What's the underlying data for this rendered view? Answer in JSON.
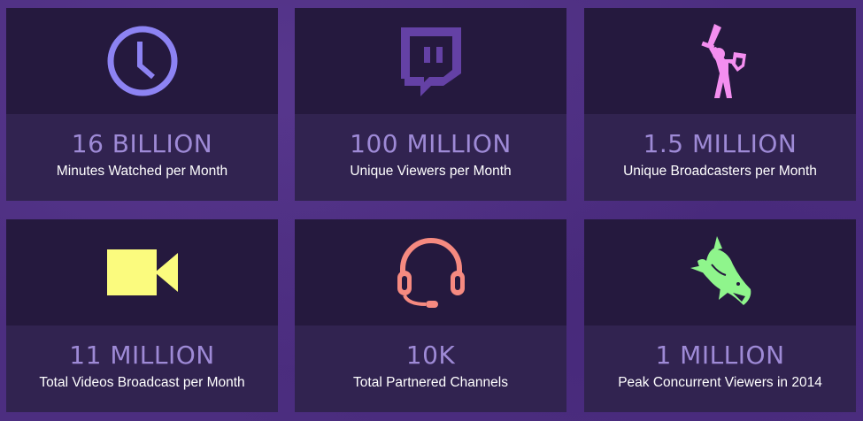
{
  "stats": [
    {
      "value": "16 BILLION",
      "label": "Minutes Watched per Month",
      "icon": "clock-icon",
      "color": "#8d83f3"
    },
    {
      "value": "100 MILLION",
      "label": "Unique Viewers per Month",
      "icon": "twitch-logo-icon",
      "color": "#6441a5"
    },
    {
      "value": "1.5 MILLION",
      "label": "Unique Broadcasters per Month",
      "icon": "knight-icon",
      "color": "#f48ef0"
    },
    {
      "value": "11 MILLION",
      "label": "Total Videos Broadcast per Month",
      "icon": "video-camera-icon",
      "color": "#fbfb7e"
    },
    {
      "value": "10K",
      "label": "Total Partnered Channels",
      "icon": "headset-icon",
      "color": "#f68a80"
    },
    {
      "value": "1 MILLION",
      "label": "Peak Concurrent Viewers in 2014",
      "icon": "shark-icon",
      "color": "#8ff58c"
    }
  ]
}
